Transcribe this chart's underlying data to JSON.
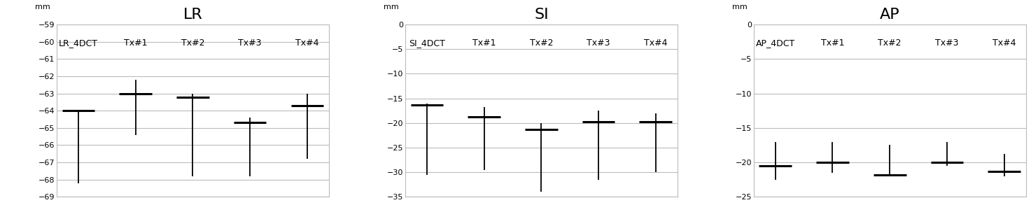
{
  "panels": [
    {
      "title": "LR",
      "ylabel": "mm",
      "ylim": [
        -69,
        -59
      ],
      "yticks": [
        -69,
        -68,
        -67,
        -66,
        -65,
        -64,
        -63,
        -62,
        -61,
        -60,
        -59
      ],
      "categories": [
        "LR_4DCT",
        "Tx#1",
        "Tx#2",
        "Tx#3",
        "Tx#4"
      ],
      "centers": [
        -64.0,
        -63.0,
        -63.2,
        -64.7,
        -63.7
      ],
      "lows": [
        -68.2,
        -65.4,
        -67.8,
        -67.8,
        -66.8
      ],
      "highs": [
        -64.0,
        -62.2,
        -63.0,
        -64.4,
        -63.0
      ]
    },
    {
      "title": "SI",
      "ylabel": "mm",
      "ylim": [
        -35,
        0
      ],
      "yticks": [
        -35,
        -30,
        -25,
        -20,
        -15,
        -10,
        -5,
        0
      ],
      "categories": [
        "SI_4DCT",
        "Tx#1",
        "Tx#2",
        "Tx#3",
        "Tx#4"
      ],
      "centers": [
        -16.3,
        -18.8,
        -21.3,
        -19.8,
        -19.8
      ],
      "lows": [
        -30.5,
        -29.5,
        -34.0,
        -31.5,
        -30.0
      ],
      "highs": [
        -16.0,
        -16.8,
        -20.0,
        -17.5,
        -18.0
      ]
    },
    {
      "title": "AP",
      "ylabel": "mm",
      "ylim": [
        -25,
        0
      ],
      "yticks": [
        -25,
        -20,
        -15,
        -10,
        -5,
        0
      ],
      "categories": [
        "AP_4DCT",
        "Tx#1",
        "Tx#2",
        "Tx#3",
        "Tx#4"
      ],
      "centers": [
        -20.5,
        -20.0,
        -21.8,
        -20.0,
        -21.3
      ],
      "lows": [
        -22.5,
        -21.5,
        -22.0,
        -20.5,
        -22.0
      ],
      "highs": [
        -17.0,
        -17.0,
        -17.5,
        -17.0,
        -18.8
      ]
    }
  ],
  "bg_color": "#ffffff",
  "line_color": "#000000",
  "grid_color": "#bbbbbb",
  "text_color": "#000000",
  "line_width": 1.3,
  "hmarker_linewidth": 2.2,
  "hmarker_xhalf": 0.06,
  "title_fontsize": 16,
  "cat_fontsize": 9,
  "tick_fontsize": 8,
  "ylabel_fontsize": 8
}
